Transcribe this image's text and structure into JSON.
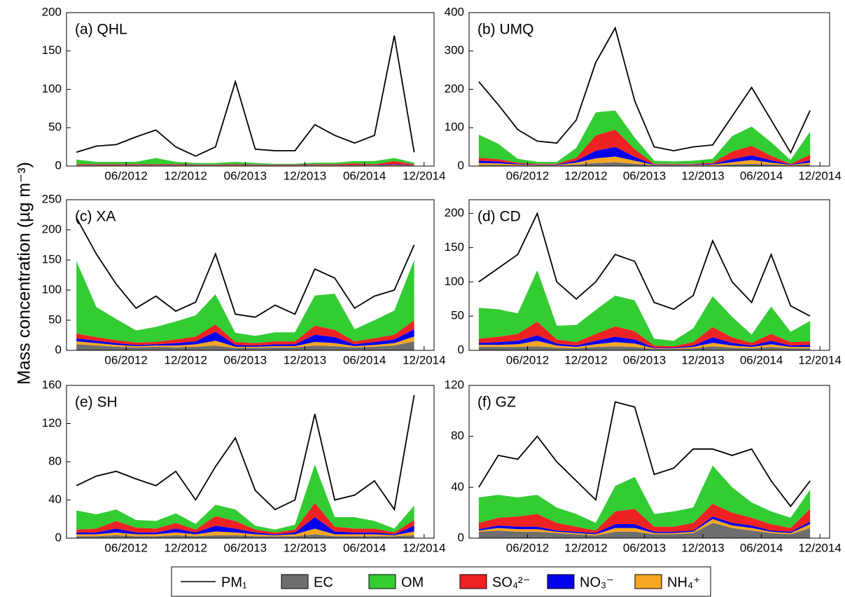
{
  "y_label": "Mass concentration (µg m⁻³)",
  "chart_data": [
    {
      "type": "area",
      "title": "(a) QHL",
      "xlim": [
        "12/2011",
        "01/2015"
      ],
      "ylim": [
        0,
        200
      ],
      "yticks": [
        0,
        50,
        100,
        150,
        200
      ],
      "xticks": [
        "06/2012",
        "12/2012",
        "06/2013",
        "12/2013",
        "06/2014",
        "12/2014"
      ],
      "x": [
        "01/2012",
        "03/2012",
        "05/2012",
        "07/2012",
        "09/2012",
        "11/2012",
        "01/2013",
        "03/2013",
        "05/2013",
        "07/2013",
        "09/2013",
        "11/2013",
        "01/2014",
        "03/2014",
        "05/2014",
        "07/2014",
        "09/2014",
        "11/2014"
      ],
      "series": [
        {
          "name": "PM₁",
          "color": "#000000",
          "style": "line",
          "values": [
            18,
            26,
            28,
            38,
            47,
            25,
            13,
            25,
            110,
            22,
            20,
            20,
            54,
            40,
            30,
            40,
            170,
            18
          ]
        },
        {
          "name": "EC",
          "color": "#6e6e6e",
          "values": [
            0.5,
            0.5,
            0.5,
            0.5,
            0.5,
            0.5,
            0.5,
            0.5,
            0.5,
            0.5,
            0.5,
            0.5,
            0.5,
            0.5,
            0.5,
            0.5,
            0.5,
            0.5
          ]
        },
        {
          "name": "OM",
          "color": "#33cc33",
          "values": [
            6,
            3,
            3,
            3,
            8,
            3,
            2,
            2,
            3,
            2,
            1,
            1,
            2,
            2,
            3,
            4,
            4,
            2
          ]
        },
        {
          "name": "SO₄²⁻",
          "color": "#ee2222",
          "values": [
            1,
            1,
            1,
            1,
            1,
            1,
            0.5,
            0.5,
            1,
            0.5,
            0.5,
            0.5,
            1,
            1,
            2,
            1,
            4,
            1
          ]
        },
        {
          "name": "NO₃⁻",
          "color": "#0000ee",
          "values": [
            0.5,
            0.5,
            0.5,
            0.5,
            0.5,
            0.5,
            0.5,
            0.5,
            0.5,
            0.5,
            0.5,
            0.5,
            0.5,
            0.5,
            0.5,
            0.5,
            1,
            0.5
          ]
        },
        {
          "name": "NH₄⁺",
          "color": "#f5a623",
          "values": [
            0.5,
            0.5,
            0.5,
            0.5,
            0.5,
            0.5,
            0.5,
            0.5,
            0.5,
            0.5,
            0.5,
            0.5,
            0.5,
            0.5,
            0.5,
            0.5,
            1,
            0.5
          ]
        }
      ]
    },
    {
      "type": "area",
      "title": "(b) UMQ",
      "xlim": [
        "12/2011",
        "01/2015"
      ],
      "ylim": [
        0,
        400
      ],
      "yticks": [
        0,
        100,
        200,
        300,
        400
      ],
      "xticks": [
        "06/2012",
        "12/2012",
        "06/2013",
        "12/2013",
        "06/2014",
        "12/2014"
      ],
      "x": [
        "01/2012",
        "03/2012",
        "05/2012",
        "07/2012",
        "09/2012",
        "11/2012",
        "01/2013",
        "03/2013",
        "05/2013",
        "07/2013",
        "09/2013",
        "11/2013",
        "01/2014",
        "03/2014",
        "05/2014",
        "07/2014",
        "09/2014",
        "11/2014"
      ],
      "series": [
        {
          "values": [
            220,
            160,
            95,
            65,
            60,
            120,
            270,
            360,
            170,
            50,
            40,
            50,
            55,
            130,
            205,
            120,
            35,
            145
          ]
        },
        {
          "values": [
            3,
            3,
            2,
            2,
            2,
            4,
            8,
            10,
            6,
            2,
            2,
            2,
            2,
            4,
            6,
            4,
            2,
            4
          ]
        },
        {
          "values": [
            60,
            40,
            10,
            5,
            5,
            25,
            60,
            50,
            30,
            8,
            6,
            8,
            10,
            40,
            50,
            35,
            10,
            60
          ]
        },
        {
          "values": [
            8,
            6,
            3,
            2,
            2,
            8,
            40,
            45,
            20,
            2,
            2,
            2,
            3,
            20,
            25,
            12,
            2,
            15
          ]
        },
        {
          "values": [
            6,
            5,
            2,
            1,
            1,
            5,
            20,
            25,
            10,
            1,
            1,
            1,
            2,
            8,
            12,
            6,
            1,
            6
          ]
        },
        {
          "values": [
            5,
            4,
            2,
            1,
            1,
            5,
            12,
            15,
            8,
            1,
            1,
            1,
            2,
            6,
            10,
            5,
            1,
            5
          ]
        }
      ]
    },
    {
      "type": "area",
      "title": "(c) XA",
      "xlim": [
        "12/2011",
        "01/2015"
      ],
      "ylim": [
        0,
        250
      ],
      "yticks": [
        0,
        50,
        100,
        150,
        200,
        250
      ],
      "xticks": [
        "06/2012",
        "12/2012",
        "06/2013",
        "12/2013",
        "06/2014",
        "12/2014"
      ],
      "x": [
        "01/2012",
        "03/2012",
        "05/2012",
        "07/2012",
        "09/2012",
        "11/2012",
        "01/2013",
        "03/2013",
        "05/2013",
        "07/2013",
        "09/2013",
        "11/2013",
        "01/2014",
        "03/2014",
        "05/2014",
        "07/2014",
        "09/2014",
        "11/2014"
      ],
      "series": [
        {
          "values": [
            220,
            160,
            110,
            70,
            90,
            65,
            80,
            160,
            60,
            55,
            75,
            60,
            135,
            120,
            70,
            90,
            100,
            175
          ]
        },
        {
          "values": [
            10,
            8,
            6,
            5,
            6,
            5,
            6,
            8,
            4,
            4,
            5,
            5,
            8,
            7,
            5,
            6,
            8,
            15
          ]
        },
        {
          "values": [
            120,
            50,
            35,
            20,
            25,
            30,
            35,
            50,
            15,
            12,
            15,
            15,
            50,
            60,
            20,
            30,
            40,
            100
          ]
        },
        {
          "values": [
            8,
            6,
            5,
            4,
            4,
            6,
            8,
            12,
            5,
            4,
            5,
            5,
            15,
            12,
            5,
            6,
            8,
            15
          ]
        },
        {
          "values": [
            5,
            4,
            3,
            2,
            2,
            4,
            5,
            15,
            3,
            2,
            3,
            3,
            12,
            10,
            3,
            5,
            6,
            12
          ]
        },
        {
          "values": [
            5,
            4,
            3,
            2,
            2,
            3,
            4,
            8,
            2,
            2,
            2,
            2,
            6,
            5,
            2,
            3,
            4,
            8
          ]
        }
      ]
    },
    {
      "type": "area",
      "title": "(d) CD",
      "xlim": [
        "12/2011",
        "01/2015"
      ],
      "ylim": [
        0,
        220
      ],
      "yticks": [
        0,
        50,
        100,
        150,
        200
      ],
      "xticks": [
        "06/2012",
        "12/2012",
        "06/2013",
        "12/2013",
        "06/2014",
        "12/2014"
      ],
      "x": [
        "01/2012",
        "03/2012",
        "05/2012",
        "07/2012",
        "09/2012",
        "11/2012",
        "01/2013",
        "03/2013",
        "05/2013",
        "07/2013",
        "09/2013",
        "11/2013",
        "01/2014",
        "03/2014",
        "05/2014",
        "07/2014",
        "09/2014",
        "11/2014"
      ],
      "series": [
        {
          "values": [
            100,
            120,
            140,
            200,
            100,
            75,
            100,
            140,
            130,
            70,
            60,
            80,
            160,
            100,
            70,
            140,
            65,
            50
          ]
        },
        {
          "values": [
            5,
            5,
            5,
            6,
            4,
            3,
            5,
            6,
            5,
            2,
            2,
            3,
            6,
            4,
            3,
            5,
            3,
            3
          ]
        },
        {
          "values": [
            45,
            40,
            30,
            75,
            20,
            25,
            35,
            45,
            45,
            10,
            8,
            20,
            45,
            30,
            12,
            40,
            15,
            30
          ]
        },
        {
          "values": [
            6,
            8,
            10,
            20,
            6,
            5,
            10,
            15,
            12,
            3,
            2,
            5,
            15,
            8,
            4,
            10,
            5,
            5
          ]
        },
        {
          "values": [
            3,
            4,
            5,
            8,
            3,
            2,
            5,
            8,
            6,
            1,
            1,
            2,
            8,
            4,
            2,
            5,
            2,
            3
          ]
        },
        {
          "values": [
            3,
            3,
            4,
            8,
            3,
            2,
            4,
            6,
            5,
            1,
            1,
            2,
            5,
            3,
            2,
            4,
            2,
            2
          ]
        }
      ]
    },
    {
      "type": "area",
      "title": "(e) SH",
      "xlim": [
        "12/2011",
        "01/2015"
      ],
      "ylim": [
        0,
        160
      ],
      "yticks": [
        0,
        40,
        80,
        120,
        160
      ],
      "xticks": [
        "06/2012",
        "12/2012",
        "06/2013",
        "12/2013",
        "06/2014",
        "12/2014"
      ],
      "x": [
        "01/2012",
        "03/2012",
        "05/2012",
        "07/2012",
        "09/2012",
        "11/2012",
        "01/2013",
        "03/2013",
        "05/2013",
        "07/2013",
        "09/2013",
        "11/2013",
        "01/2014",
        "03/2014",
        "05/2014",
        "07/2014",
        "09/2014",
        "11/2014"
      ],
      "series": [
        {
          "values": [
            55,
            65,
            70,
            62,
            55,
            70,
            40,
            75,
            105,
            50,
            30,
            40,
            130,
            40,
            45,
            60,
            30,
            150
          ]
        },
        {
          "values": [
            2,
            2,
            3,
            2,
            2,
            3,
            2,
            3,
            3,
            2,
            2,
            2,
            4,
            2,
            2,
            2,
            2,
            3
          ]
        },
        {
          "values": [
            20,
            15,
            12,
            8,
            8,
            10,
            6,
            12,
            12,
            4,
            3,
            5,
            40,
            10,
            12,
            8,
            4,
            15
          ]
        },
        {
          "values": [
            3,
            4,
            8,
            5,
            4,
            6,
            3,
            10,
            8,
            3,
            2,
            3,
            15,
            5,
            4,
            4,
            2,
            6
          ]
        },
        {
          "values": [
            2,
            2,
            4,
            2,
            2,
            4,
            2,
            6,
            4,
            2,
            1,
            2,
            12,
            3,
            2,
            2,
            1,
            6
          ]
        },
        {
          "values": [
            2,
            2,
            3,
            2,
            2,
            3,
            2,
            4,
            3,
            2,
            1,
            2,
            6,
            2,
            2,
            2,
            1,
            4
          ]
        }
      ]
    },
    {
      "type": "area",
      "title": "(f) GZ",
      "xlim": [
        "12/2011",
        "01/2015"
      ],
      "ylim": [
        0,
        120
      ],
      "yticks": [
        0,
        40,
        80,
        120
      ],
      "xticks": [
        "06/2012",
        "12/2012",
        "06/2013",
        "12/2013",
        "06/2014",
        "12/2014"
      ],
      "x": [
        "01/2012",
        "03/2012",
        "05/2012",
        "07/2012",
        "09/2012",
        "11/2012",
        "01/2013",
        "03/2013",
        "05/2013",
        "07/2013",
        "09/2013",
        "11/2013",
        "01/2014",
        "03/2014",
        "05/2014",
        "07/2014",
        "09/2014",
        "11/2014"
      ],
      "series": [
        {
          "values": [
            40,
            65,
            62,
            80,
            60,
            45,
            30,
            107,
            103,
            50,
            55,
            70,
            70,
            65,
            70,
            45,
            25,
            45
          ]
        },
        {
          "values": [
            5,
            6,
            5,
            5,
            4,
            3,
            2,
            5,
            5,
            3,
            3,
            4,
            12,
            8,
            6,
            4,
            3,
            8
          ]
        },
        {
          "values": [
            20,
            18,
            15,
            15,
            12,
            10,
            6,
            20,
            25,
            10,
            12,
            12,
            30,
            20,
            12,
            10,
            8,
            15
          ]
        },
        {
          "values": [
            5,
            6,
            8,
            10,
            6,
            4,
            2,
            10,
            12,
            4,
            4,
            6,
            10,
            8,
            6,
            5,
            3,
            10
          ]
        },
        {
          "values": [
            1,
            2,
            2,
            2,
            1,
            1,
            1,
            3,
            3,
            1,
            1,
            1,
            2,
            2,
            2,
            1,
            1,
            2
          ]
        },
        {
          "values": [
            1,
            2,
            2,
            2,
            1,
            1,
            1,
            3,
            3,
            1,
            1,
            1,
            3,
            2,
            2,
            1,
            1,
            3
          ]
        }
      ]
    }
  ]
}
